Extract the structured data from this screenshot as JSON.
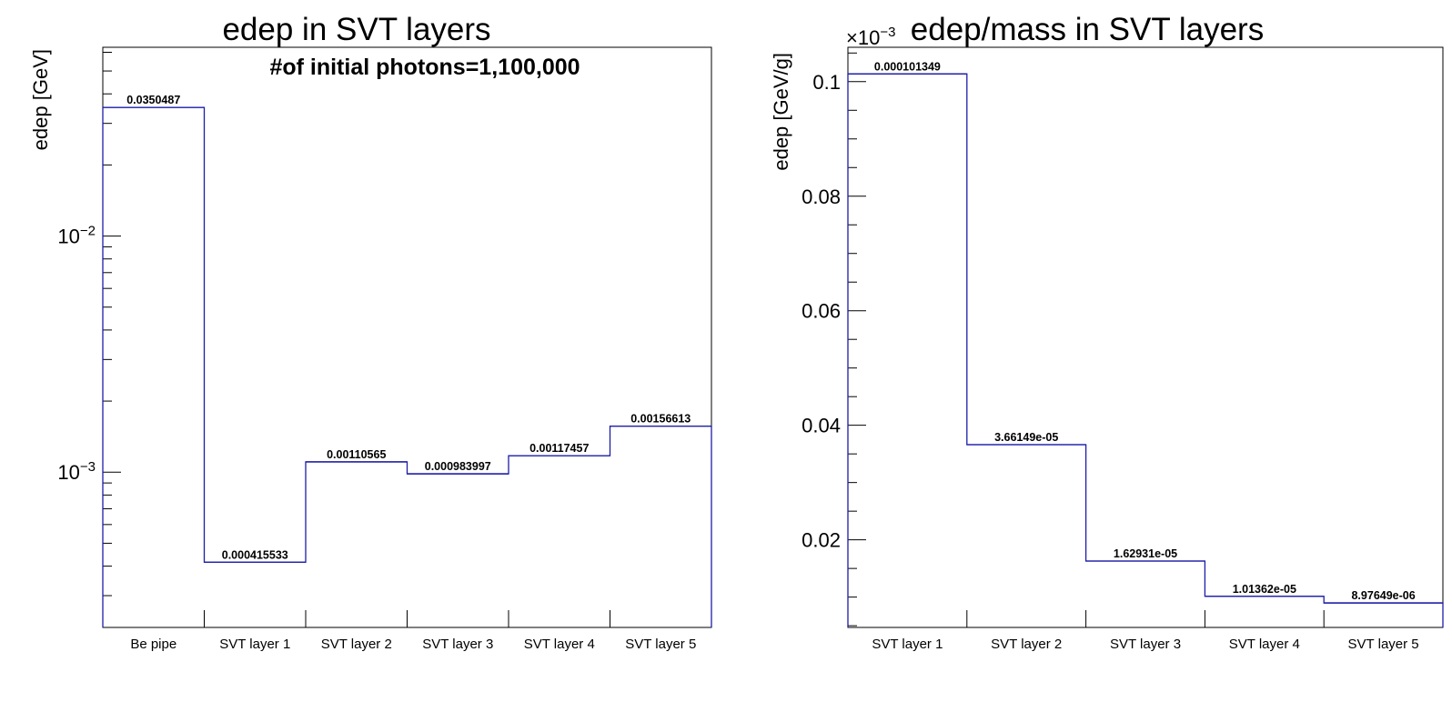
{
  "chart_data": [
    {
      "type": "bar",
      "style": "step-histogram",
      "title": "edep in SVT layers",
      "annotation": "#of initial photons=1,100,000",
      "xlabel": "",
      "ylabel": "edep [GeV]",
      "yscale": "log",
      "ylim": [
        0.00022,
        0.063
      ],
      "ytick_labels": [
        {
          "value": 0.01,
          "base": "10",
          "exp": "−2"
        },
        {
          "value": 0.001,
          "base": "10",
          "exp": "−3"
        }
      ],
      "categories": [
        "Be pipe",
        "SVT layer 1",
        "SVT layer 2",
        "SVT layer 3",
        "SVT layer 4",
        "SVT layer 5"
      ],
      "values": [
        0.0350487,
        0.000415533,
        0.00110565,
        0.000983997,
        0.00117457,
        0.00156613
      ],
      "value_labels": [
        "0.0350487",
        "0.000415533",
        "0.00110565",
        "0.000983997",
        "0.00117457",
        "0.00156613"
      ],
      "line_color": "#1c1ca8",
      "grid": false,
      "legend": "none"
    },
    {
      "type": "bar",
      "style": "step-histogram",
      "title": "edep/mass in SVT layers",
      "xlabel": "",
      "ylabel": "edep [GeV/g]",
      "yscale": "linear",
      "multiplier": "×10",
      "multiplier_exp": "−3",
      "ylim": [
        0.0047,
        0.106
      ],
      "ytick_labels": [
        {
          "value": 0.02,
          "text": "0.02"
        },
        {
          "value": 0.04,
          "text": "0.04"
        },
        {
          "value": 0.06,
          "text": "0.06"
        },
        {
          "value": 0.08,
          "text": "0.08"
        },
        {
          "value": 0.1,
          "text": "0.1"
        }
      ],
      "categories": [
        "SVT layer 1",
        "SVT layer 2",
        "SVT layer 3",
        "SVT layer 4",
        "SVT layer 5"
      ],
      "values": [
        0.000101349,
        3.66149e-05,
        1.62931e-05,
        1.01362e-05,
        8.97649e-06
      ],
      "value_labels": [
        "0.000101349",
        "3.66149e-05",
        "1.62931e-05",
        "1.01362e-05",
        "8.97649e-06"
      ],
      "line_color": "#1c1ca8",
      "grid": false,
      "legend": "none"
    }
  ]
}
